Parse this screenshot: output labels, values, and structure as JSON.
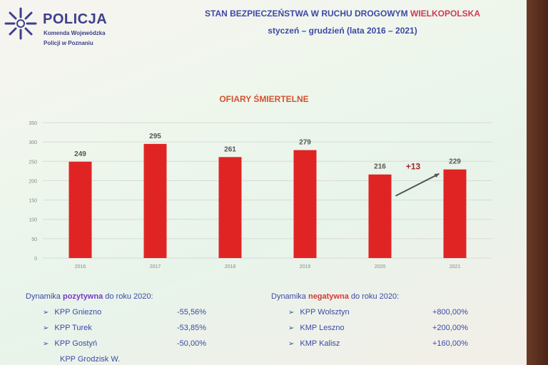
{
  "header": {
    "brand": "POLICJA",
    "brand_sub1": "Komenda Wojewódzka",
    "brand_sub2": "Policji w Poznaniu",
    "title_main": "STAN BEZPIECZEŃSTWA W RUCHU DROGOWYM",
    "title_region": "WIELKOPOLSKA",
    "title_sub": "styczeń – grudzień (lata 2016 – 2021)"
  },
  "chart_data": {
    "type": "bar",
    "title": "OFIARY ŚMIERTELNE",
    "categories": [
      "2016",
      "2017",
      "2018",
      "2019",
      "2020",
      "2021"
    ],
    "values": [
      249,
      295,
      261,
      279,
      216,
      229
    ],
    "data_labels": [
      "249",
      "295",
      "261",
      "279",
      "216",
      "229"
    ],
    "yticks": [
      "0",
      "50",
      "100",
      "150",
      "200",
      "250",
      "300",
      "350"
    ],
    "ylim": [
      0,
      350
    ],
    "grid": true,
    "annotation": "+13",
    "bar_color": "#e02424"
  },
  "positive": {
    "hdr_pre": "Dynamika ",
    "hdr_word": "pozytywna",
    "hdr_post": " do roku 2020:",
    "items": [
      {
        "name": "KPP Gniezno",
        "value": "-55,56%"
      },
      {
        "name": "KPP Turek",
        "value": "-53,85%"
      },
      {
        "name": "KPP Gostyń",
        "value": "-50,00%"
      },
      {
        "name": "KPP Grodzisk W.",
        "value": ""
      }
    ]
  },
  "negative": {
    "hdr_pre": "Dynamika ",
    "hdr_word": "negatywna",
    "hdr_post": " do roku 2020:",
    "items": [
      {
        "name": "KPP Wolsztyn",
        "value": "+800,00%"
      },
      {
        "name": "KMP Leszno",
        "value": "+200,00%"
      },
      {
        "name": "KMP Kalisz",
        "value": "+160,00%"
      }
    ]
  },
  "colors": {
    "accent_blue": "#3d49a6",
    "accent_red": "#d23a55",
    "chart_title": "#d2522e"
  },
  "icons": {
    "bullet": "arrow-bullet-icon",
    "logo": "police-star-logo-icon"
  }
}
